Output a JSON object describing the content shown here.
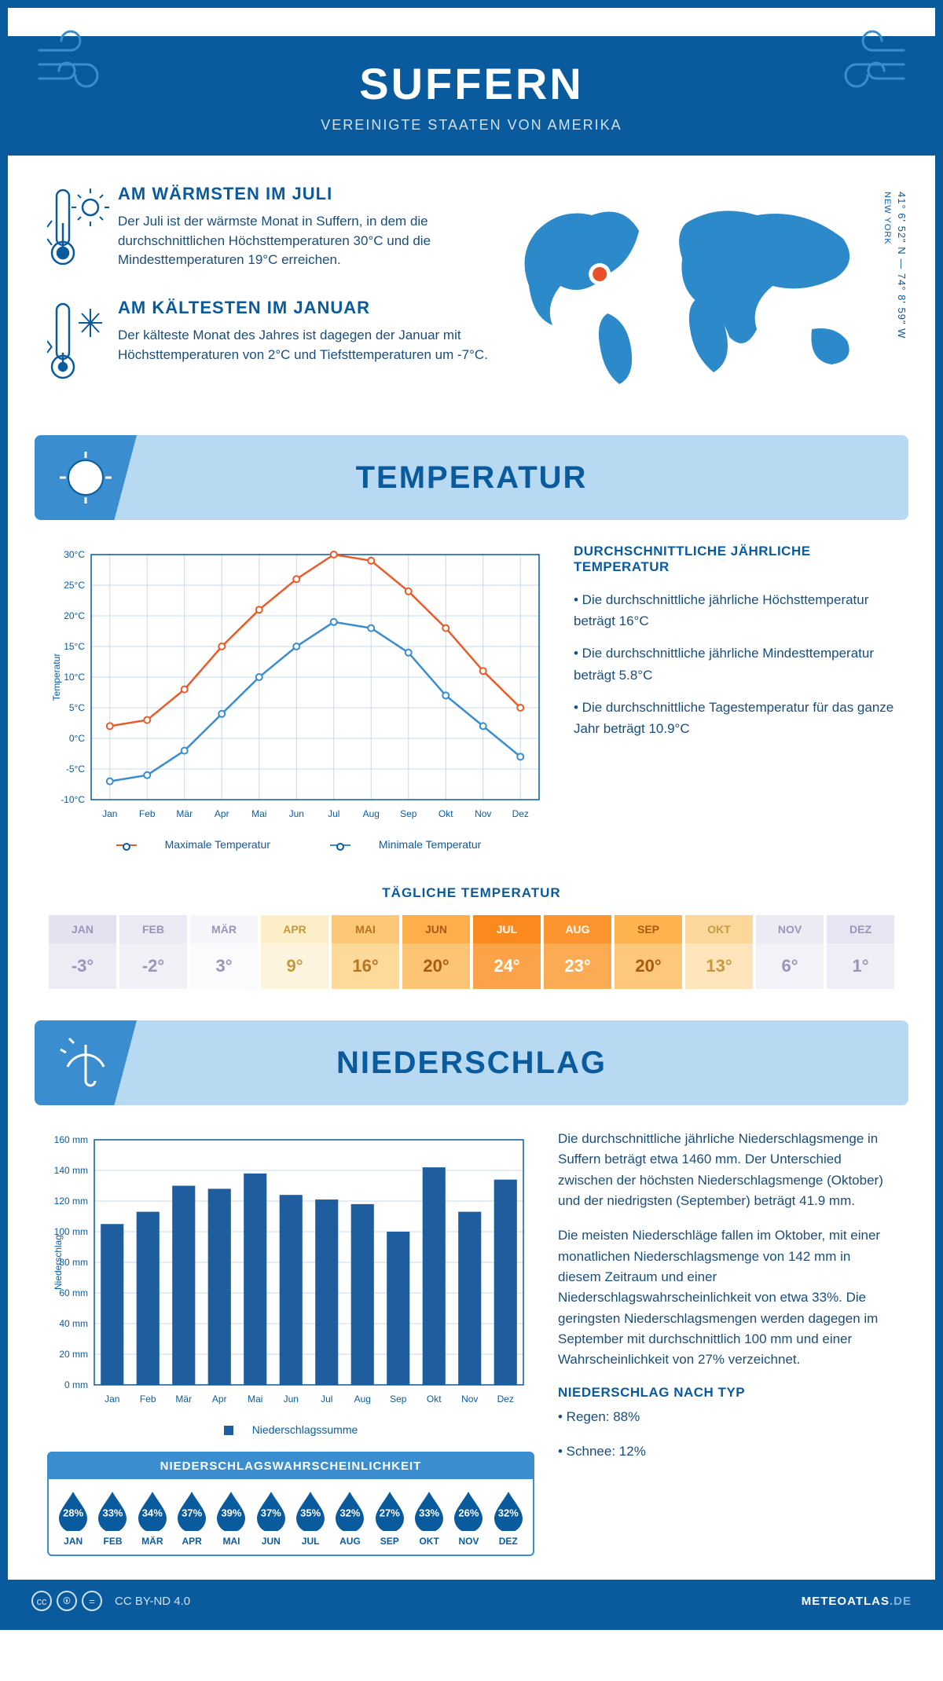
{
  "header": {
    "city": "SUFFERN",
    "country": "VEREINIGTE STAATEN VON AMERIKA"
  },
  "coords": {
    "lat": "41° 6' 52\" N — 74° 8' 59\" W",
    "place": "NEW YORK"
  },
  "info_hot": {
    "title": "AM WÄRMSTEN IM JULI",
    "text": "Der Juli ist der wärmste Monat in Suffern, in dem die durchschnittlichen Höchsttemperaturen 30°C und die Mindesttemperaturen 19°C erreichen."
  },
  "info_cold": {
    "title": "AM KÄLTESTEN IM JANUAR",
    "text": "Der kälteste Monat des Jahres ist dagegen der Januar mit Höchsttemperaturen von 2°C und Tiefsttemperaturen um -7°C."
  },
  "section_temp_title": "TEMPERATUR",
  "section_precip_title": "NIEDERSCHLAG",
  "temp_chart": {
    "months": [
      "Jan",
      "Feb",
      "Mär",
      "Apr",
      "Mai",
      "Jun",
      "Jul",
      "Aug",
      "Sep",
      "Okt",
      "Nov",
      "Dez"
    ],
    "max_values": [
      2,
      3,
      8,
      15,
      21,
      26,
      30,
      29,
      24,
      18,
      11,
      5
    ],
    "min_values": [
      -7,
      -6,
      -2,
      4,
      10,
      15,
      19,
      18,
      14,
      7,
      2,
      -3
    ],
    "ylim": [
      -10,
      30
    ],
    "ytick_step": 5,
    "max_color": "#e85c2a",
    "min_color": "#3a8dcf",
    "grid_color": "#c9d9e8",
    "axis_color": "#0a5a9e",
    "ylabel": "Temperatur",
    "legend_max": "Maximale Temperatur",
    "legend_min": "Minimale Temperatur"
  },
  "temp_desc": {
    "heading": "DURCHSCHNITTLICHE JÄHRLICHE TEMPERATUR",
    "b1": "• Die durchschnittliche jährliche Höchsttemperatur beträgt 16°C",
    "b2": "• Die durchschnittliche jährliche Mindesttemperatur beträgt 5.8°C",
    "b3": "• Die durchschnittliche Tagestemperatur für das ganze Jahr beträgt 10.9°C"
  },
  "daily_temp": {
    "title": "TÄGLICHE TEMPERATUR",
    "months": [
      "JAN",
      "FEB",
      "MÄR",
      "APR",
      "MAI",
      "JUN",
      "JUL",
      "AUG",
      "SEP",
      "OKT",
      "NOV",
      "DEZ"
    ],
    "values": [
      "-3°",
      "-2°",
      "3°",
      "9°",
      "16°",
      "20°",
      "24°",
      "23°",
      "20°",
      "13°",
      "6°",
      "1°"
    ],
    "head_colors": [
      "#e4e1f0",
      "#ece9f4",
      "#f7f5fa",
      "#fceec7",
      "#fcc776",
      "#feae4a",
      "#fb8a1e",
      "#fc9530",
      "#feb34f",
      "#fdd79a",
      "#eeeaf4",
      "#e8e4f1"
    ],
    "val_colors": [
      "#eeebf5",
      "#f3f0f8",
      "#fbfafd",
      "#fdf4dd",
      "#fdd99a",
      "#fec475",
      "#fca349",
      "#fcab55",
      "#fec87c",
      "#fee5bc",
      "#f4f1f8",
      "#f0edf6"
    ],
    "text_colors": [
      "#9a95b8",
      "#9a95b8",
      "#9a95b8",
      "#c49a3e",
      "#b8731e",
      "#a85a10",
      "#fff",
      "#fff",
      "#a85a10",
      "#c49a3e",
      "#9a95b8",
      "#9a95b8"
    ]
  },
  "precip_chart": {
    "months": [
      "Jan",
      "Feb",
      "Mär",
      "Apr",
      "Mai",
      "Jun",
      "Jul",
      "Aug",
      "Sep",
      "Okt",
      "Nov",
      "Dez"
    ],
    "values": [
      105,
      113,
      130,
      128,
      138,
      124,
      121,
      118,
      100,
      142,
      113,
      134
    ],
    "ylim": [
      0,
      160
    ],
    "ytick_step": 20,
    "bar_color": "#1e5e9e",
    "grid_color": "#c9d9e8",
    "axis_color": "#0a5a9e",
    "ylabel": "Niederschlag",
    "legend": "Niederschlagssumme"
  },
  "precip_desc": {
    "p1": "Die durchschnittliche jährliche Niederschlagsmenge in Suffern beträgt etwa 1460 mm. Der Unterschied zwischen der höchsten Niederschlagsmenge (Oktober) und der niedrigsten (September) beträgt 41.9 mm.",
    "p2": "Die meisten Niederschläge fallen im Oktober, mit einer monatlichen Niederschlagsmenge von 142 mm in diesem Zeitraum und einer Niederschlagswahrscheinlichkeit von etwa 33%. Die geringsten Niederschlagsmengen werden dagegen im September mit durchschnittlich 100 mm und einer Wahrscheinlichkeit von 27% verzeichnet.",
    "heading": "NIEDERSCHLAG NACH TYP",
    "b1": "• Regen: 88%",
    "b2": "• Schnee: 12%"
  },
  "probability": {
    "title": "NIEDERSCHLAGSWAHRSCHEINLICHKEIT",
    "months": [
      "JAN",
      "FEB",
      "MÄR",
      "APR",
      "MAI",
      "JUN",
      "JUL",
      "AUG",
      "SEP",
      "OKT",
      "NOV",
      "DEZ"
    ],
    "values": [
      "28%",
      "33%",
      "34%",
      "37%",
      "39%",
      "37%",
      "35%",
      "32%",
      "27%",
      "33%",
      "26%",
      "32%"
    ],
    "drop_color": "#0a5a9e"
  },
  "footer": {
    "license": "CC BY-ND 4.0",
    "brand": "METEOATLAS",
    "brand_suffix": ".DE"
  },
  "colors": {
    "primary": "#0a5a9e",
    "light": "#b8d9f2",
    "mid": "#3a8dcf"
  }
}
